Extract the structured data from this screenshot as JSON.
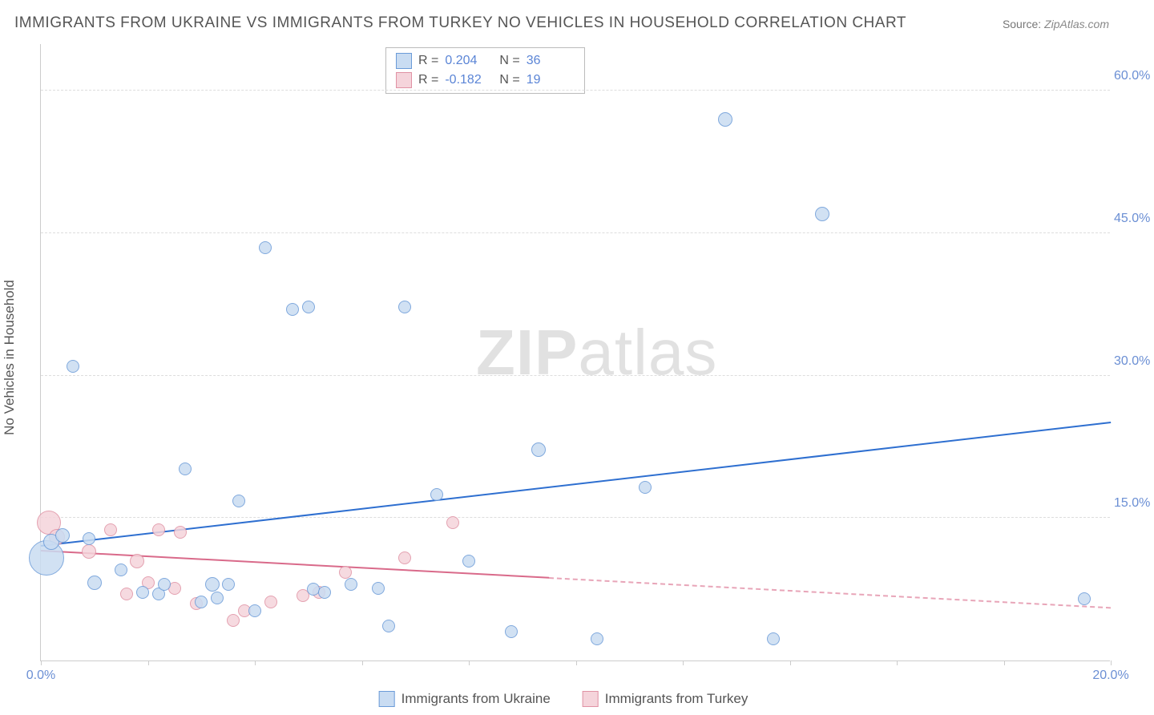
{
  "title": "IMMIGRANTS FROM UKRAINE VS IMMIGRANTS FROM TURKEY NO VEHICLES IN HOUSEHOLD CORRELATION CHART",
  "source_label": "Source:",
  "source_value": "ZipAtlas.com",
  "ylabel": "No Vehicles in Household",
  "watermark_bold": "ZIP",
  "watermark_rest": "atlas",
  "chart": {
    "type": "scatter",
    "background_color": "#ffffff",
    "grid_color": "#dddddd",
    "axis_color": "#cccccc",
    "text_color": "#555555",
    "tick_color": "#6b8fd4",
    "xlim": [
      0,
      20
    ],
    "ylim": [
      0,
      65
    ],
    "xticks": [
      0,
      2,
      4,
      6,
      8,
      10,
      12,
      14,
      16,
      18,
      20
    ],
    "xtick_labels": {
      "0": "0.0%",
      "20": "20.0%"
    },
    "yticks": [
      15,
      30,
      45,
      60
    ],
    "ytick_labels": {
      "15": "15.0%",
      "30": "30.0%",
      "45": "45.0%",
      "60": "60.0%"
    },
    "title_fontsize": 19,
    "label_fontsize": 17,
    "tick_fontsize": 16
  },
  "series": {
    "ukraine": {
      "label": "Immigrants from Ukraine",
      "fill": "#c9dcf2",
      "stroke": "#6b9bd8",
      "line_color": "#2e6fd0",
      "R_label": "R =",
      "R": "0.204",
      "N_label": "N =",
      "N": "36",
      "marker_radius": 8,
      "trend": {
        "x1": 0,
        "y1": 12,
        "x2": 20,
        "y2": 25,
        "dashed_after_x": null
      },
      "points": [
        {
          "x": 0.1,
          "y": 10.8,
          "r": 22
        },
        {
          "x": 0.2,
          "y": 12.5,
          "r": 10
        },
        {
          "x": 0.4,
          "y": 13.2,
          "r": 9
        },
        {
          "x": 0.6,
          "y": 31,
          "r": 8
        },
        {
          "x": 0.9,
          "y": 12.8,
          "r": 8
        },
        {
          "x": 1.0,
          "y": 8.2,
          "r": 9
        },
        {
          "x": 1.5,
          "y": 9.5,
          "r": 8
        },
        {
          "x": 1.9,
          "y": 7.2,
          "r": 8
        },
        {
          "x": 2.2,
          "y": 7.0,
          "r": 8
        },
        {
          "x": 2.3,
          "y": 8.0,
          "r": 8
        },
        {
          "x": 2.7,
          "y": 20.2,
          "r": 8
        },
        {
          "x": 3.0,
          "y": 6.2,
          "r": 8
        },
        {
          "x": 3.2,
          "y": 8.0,
          "r": 9
        },
        {
          "x": 3.3,
          "y": 6.6,
          "r": 8
        },
        {
          "x": 3.5,
          "y": 8.0,
          "r": 8
        },
        {
          "x": 3.7,
          "y": 16.8,
          "r": 8
        },
        {
          "x": 4.0,
          "y": 5.2,
          "r": 8
        },
        {
          "x": 4.2,
          "y": 43.5,
          "r": 8
        },
        {
          "x": 4.7,
          "y": 37,
          "r": 8
        },
        {
          "x": 5.0,
          "y": 37.2,
          "r": 8
        },
        {
          "x": 5.1,
          "y": 7.5,
          "r": 8
        },
        {
          "x": 5.3,
          "y": 7.2,
          "r": 8
        },
        {
          "x": 5.8,
          "y": 8.0,
          "r": 8
        },
        {
          "x": 6.3,
          "y": 7.6,
          "r": 8
        },
        {
          "x": 6.5,
          "y": 3.6,
          "r": 8
        },
        {
          "x": 6.8,
          "y": 37.2,
          "r": 8
        },
        {
          "x": 7.4,
          "y": 17.5,
          "r": 8
        },
        {
          "x": 8.0,
          "y": 10.5,
          "r": 8
        },
        {
          "x": 8.8,
          "y": 3.0,
          "r": 8
        },
        {
          "x": 9.3,
          "y": 22.2,
          "r": 9
        },
        {
          "x": 10.4,
          "y": 2.3,
          "r": 8
        },
        {
          "x": 11.3,
          "y": 18.2,
          "r": 8
        },
        {
          "x": 12.8,
          "y": 57,
          "r": 9
        },
        {
          "x": 13.7,
          "y": 2.3,
          "r": 8
        },
        {
          "x": 14.6,
          "y": 47,
          "r": 9
        },
        {
          "x": 19.5,
          "y": 6.5,
          "r": 8
        }
      ]
    },
    "turkey": {
      "label": "Immigrants from Turkey",
      "fill": "#f5d4db",
      "stroke": "#e092a4",
      "line_color": "#d96a8a",
      "R_label": "R =",
      "R": "-0.182",
      "N_label": "N =",
      "N": "19",
      "marker_radius": 8,
      "trend": {
        "x1": 0,
        "y1": 11.5,
        "x2": 20,
        "y2": 5.5,
        "dashed_after_x": 9.5
      },
      "points": [
        {
          "x": 0.15,
          "y": 14.5,
          "r": 15
        },
        {
          "x": 0.3,
          "y": 13.0,
          "r": 10
        },
        {
          "x": 0.9,
          "y": 11.5,
          "r": 9
        },
        {
          "x": 1.3,
          "y": 13.8,
          "r": 8
        },
        {
          "x": 1.6,
          "y": 7.0,
          "r": 8
        },
        {
          "x": 1.8,
          "y": 10.5,
          "r": 9
        },
        {
          "x": 2.0,
          "y": 8.2,
          "r": 8
        },
        {
          "x": 2.2,
          "y": 13.8,
          "r": 8
        },
        {
          "x": 2.5,
          "y": 7.6,
          "r": 8
        },
        {
          "x": 2.6,
          "y": 13.5,
          "r": 8
        },
        {
          "x": 2.9,
          "y": 6.0,
          "r": 8
        },
        {
          "x": 3.6,
          "y": 4.2,
          "r": 8
        },
        {
          "x": 3.8,
          "y": 5.2,
          "r": 8
        },
        {
          "x": 4.3,
          "y": 6.2,
          "r": 8
        },
        {
          "x": 4.9,
          "y": 6.8,
          "r": 8
        },
        {
          "x": 5.2,
          "y": 7.2,
          "r": 8
        },
        {
          "x": 5.7,
          "y": 9.3,
          "r": 8
        },
        {
          "x": 6.8,
          "y": 10.8,
          "r": 8
        },
        {
          "x": 7.7,
          "y": 14.5,
          "r": 8
        }
      ]
    }
  }
}
